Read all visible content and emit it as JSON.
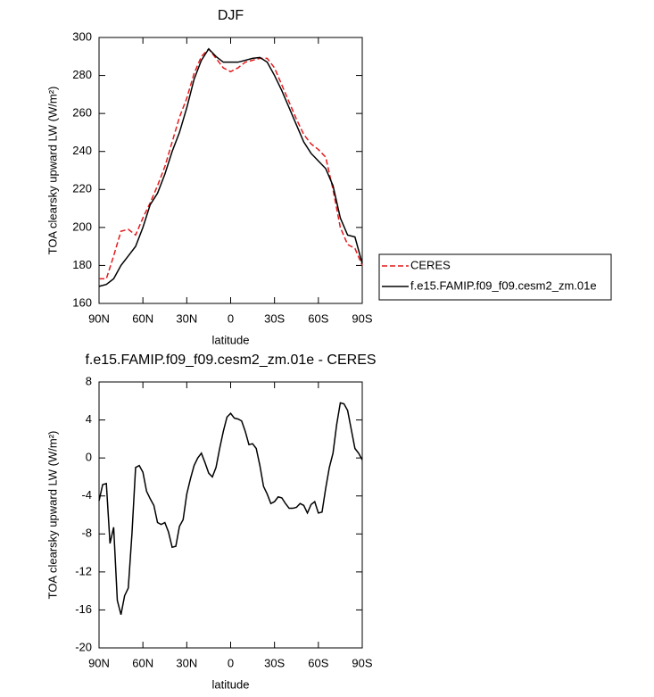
{
  "chart_data": [
    {
      "type": "line",
      "title": "DJF",
      "xlabel": "latitude",
      "ylabel": "TOA clearsky upward LW (W/m²)",
      "x": [
        90,
        85,
        80,
        75,
        70,
        65,
        60,
        55,
        50,
        45,
        40,
        35,
        30,
        25,
        20,
        15,
        10,
        5,
        0,
        -5,
        -10,
        -15,
        -20,
        -25,
        -30,
        -35,
        -40,
        -45,
        -50,
        -55,
        -60,
        -65,
        -70,
        -75,
        -80,
        -85,
        -90
      ],
      "series": [
        {
          "name": "CERES",
          "color": "#e41a1c",
          "linestyle": "dashed",
          "values": [
            173,
            173,
            185,
            198,
            199,
            196,
            205,
            213,
            222,
            232,
            245,
            258,
            268,
            281,
            290,
            294,
            289,
            284,
            282,
            284,
            287,
            288,
            289,
            289,
            284,
            275,
            266,
            257,
            249,
            244,
            241,
            237,
            220,
            200,
            191,
            189,
            180
          ]
        },
        {
          "name": "f.e15.FAMIP.f09_f09.cesm2_zm.01e",
          "color": "#000000",
          "linestyle": "solid",
          "values": [
            169,
            170,
            173,
            180,
            185,
            190,
            200,
            212,
            218,
            228,
            240,
            250,
            263,
            278,
            288,
            294,
            290,
            287,
            287,
            287,
            288,
            289,
            289.5,
            287,
            280,
            272,
            263,
            254,
            245,
            239,
            235,
            231,
            222,
            205,
            196,
            195,
            181
          ]
        }
      ],
      "xlim": [
        90,
        -90
      ],
      "ylim": [
        160,
        300
      ],
      "xticks": [
        {
          "value": 90,
          "label": "90N"
        },
        {
          "value": 60,
          "label": "60N"
        },
        {
          "value": 30,
          "label": "30N"
        },
        0,
        {
          "value": -30,
          "label": "30S"
        },
        {
          "value": -60,
          "label": "60S"
        },
        {
          "value": -90,
          "label": "90S"
        }
      ],
      "yticks": [
        160,
        180,
        200,
        220,
        240,
        260,
        280,
        300
      ],
      "legend": "outside-right"
    },
    {
      "type": "line",
      "title": "f.e15.FAMIP.f09_f09.cesm2_zm.01e - CERES",
      "xlabel": "latitude",
      "ylabel": "TOA clearsky upward LW (W/m²)",
      "x": [
        90,
        87.5,
        85,
        82.5,
        80,
        77.5,
        75,
        72.5,
        70,
        67.5,
        65,
        62.5,
        60,
        57.5,
        55,
        52.5,
        50,
        47.5,
        45,
        42.5,
        40,
        37.5,
        35,
        32.5,
        30,
        27.5,
        25,
        22.5,
        20,
        17.5,
        15,
        12.5,
        10,
        7.5,
        5,
        2.5,
        0,
        -2.5,
        -5,
        -7.5,
        -10,
        -12.5,
        -15,
        -17.5,
        -20,
        -22.5,
        -25,
        -27.5,
        -30,
        -32.5,
        -35,
        -37.5,
        -40,
        -42.5,
        -45,
        -47.5,
        -50,
        -52.5,
        -55,
        -57.5,
        -60,
        -62.5,
        -65,
        -67.5,
        -70,
        -72.5,
        -75,
        -77.5,
        -80,
        -82.5,
        -85,
        -87.5,
        -90
      ],
      "series": [
        {
          "color": "#000000",
          "linestyle": "solid",
          "values": [
            -4.5,
            -2.8,
            -2.7,
            -9,
            -7.3,
            -15,
            -16.5,
            -14.5,
            -13.7,
            -8,
            -1,
            -0.8,
            -1.5,
            -3.5,
            -4.3,
            -5,
            -6.8,
            -7,
            -6.8,
            -7.8,
            -9.4,
            -9.3,
            -7.2,
            -6.5,
            -3.8,
            -2.2,
            -0.8,
            0,
            0.5,
            -0.5,
            -1.6,
            -2,
            -1,
            1,
            2.8,
            4.3,
            4.7,
            4.2,
            4.1,
            3.9,
            2.8,
            1.4,
            1.5,
            1,
            -0.8,
            -3,
            -3.8,
            -4.8,
            -4.6,
            -4.1,
            -4.2,
            -4.8,
            -5.3,
            -5.3,
            -5.2,
            -4.8,
            -5,
            -5.8,
            -4.9,
            -4.6,
            -5.8,
            -5.7,
            -3.2,
            -1,
            0.5,
            3.5,
            5.8,
            5.7,
            5,
            3,
            1,
            0.5,
            -0.2
          ]
        }
      ],
      "xlim": [
        90,
        -90
      ],
      "ylim": [
        -20,
        8
      ],
      "xticks": [
        {
          "value": 90,
          "label": "90N"
        },
        {
          "value": 60,
          "label": "60N"
        },
        {
          "value": 30,
          "label": "30N"
        },
        0,
        {
          "value": -30,
          "label": "30S"
        },
        {
          "value": -60,
          "label": "60S"
        },
        {
          "value": -90,
          "label": "90S"
        }
      ],
      "yticks": [
        -20,
        -16,
        -12,
        -8,
        -4,
        0,
        4,
        8
      ]
    }
  ]
}
